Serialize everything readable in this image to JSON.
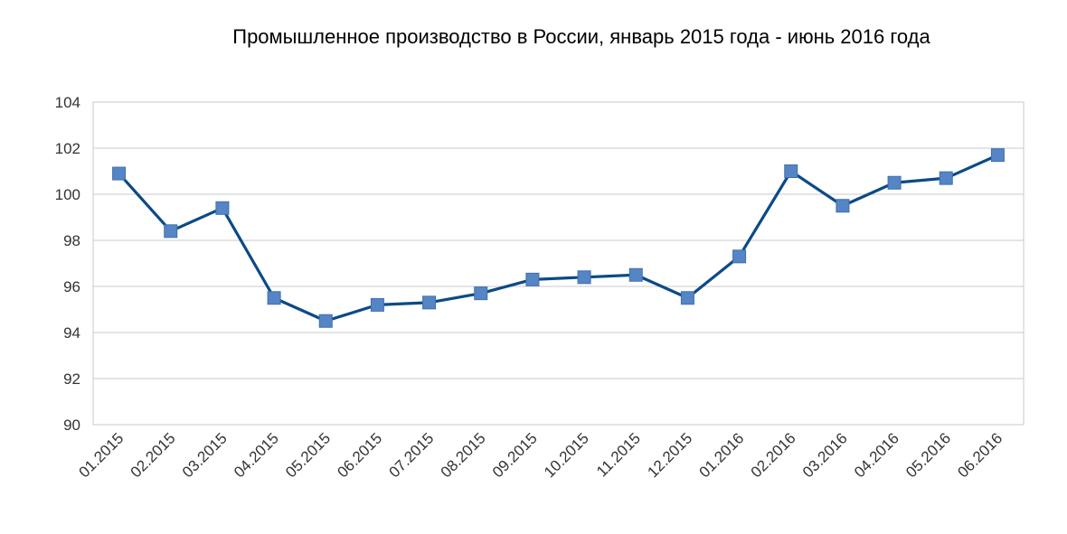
{
  "chart_data": {
    "type": "line",
    "title": "Промышленное производство в России, январь 2015 года - июнь 2016 года",
    "categories": [
      "01.2015",
      "02.2015",
      "03.2015",
      "04.2015",
      "05.2015",
      "06.2015",
      "07.2015",
      "08.2015",
      "09.2015",
      "10.2015",
      "11.2015",
      "12.2015",
      "01.2016",
      "02.2016",
      "03.2016",
      "04.2016",
      "05.2016",
      "06.2016"
    ],
    "series": [
      {
        "values": [
          100.9,
          98.4,
          99.4,
          95.5,
          94.5,
          95.2,
          95.3,
          95.7,
          96.3,
          96.4,
          96.5,
          95.5,
          97.3,
          101.0,
          99.5,
          100.5,
          100.7,
          101.7
        ]
      }
    ],
    "ylim": [
      90,
      104
    ],
    "yticks": [
      90,
      92,
      94,
      96,
      98,
      100,
      102,
      104
    ],
    "xlabel": "",
    "ylabel": "",
    "grid": true,
    "legend": "none",
    "colors": {
      "line": "#0b4a86",
      "marker": "#5585c5",
      "marker_edge": "#3e6fb0"
    }
  }
}
